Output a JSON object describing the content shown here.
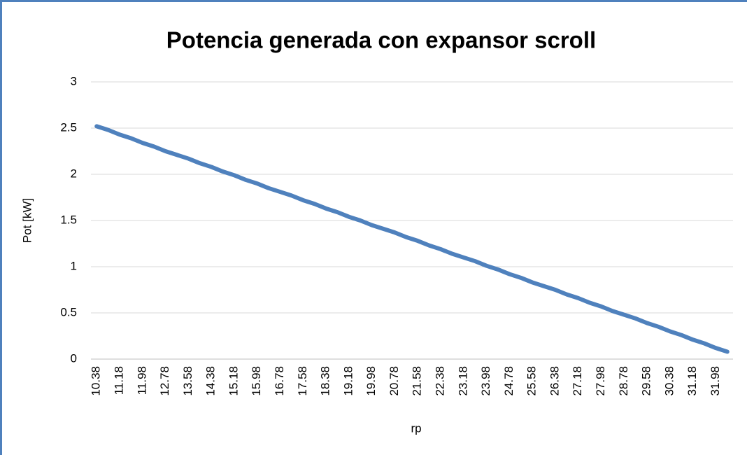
{
  "chart_data": {
    "type": "line",
    "title": "Potencia generada con expansor scroll",
    "x_label": "rp",
    "y_label": "Pot [kW]",
    "categories": [
      "10.38",
      null,
      "11.18",
      null,
      "11.98",
      null,
      "12.78",
      null,
      "13.58",
      null,
      "14.38",
      null,
      "15.18",
      null,
      "15.98",
      null,
      "16.78",
      null,
      "17.58",
      null,
      "18.38",
      null,
      "19.18",
      null,
      "19.98",
      null,
      "20.78",
      null,
      "21.58",
      null,
      "22.38",
      null,
      "23.18",
      null,
      "23.98",
      null,
      "24.78",
      null,
      "25.58",
      null,
      "26.38",
      null,
      "27.18",
      null,
      "27.98",
      null,
      "28.78",
      null,
      "29.58",
      null,
      "30.38",
      null,
      "31.18",
      null,
      "31.98",
      null
    ],
    "values": [
      2.52,
      2.48,
      2.43,
      2.39,
      2.34,
      2.3,
      2.25,
      2.21,
      2.17,
      2.12,
      2.08,
      2.03,
      1.99,
      1.94,
      1.9,
      1.85,
      1.81,
      1.77,
      1.72,
      1.68,
      1.63,
      1.59,
      1.54,
      1.5,
      1.45,
      1.41,
      1.37,
      1.32,
      1.28,
      1.23,
      1.19,
      1.14,
      1.1,
      1.06,
      1.01,
      0.97,
      0.92,
      0.88,
      0.83,
      0.79,
      0.75,
      0.7,
      0.66,
      0.61,
      0.57,
      0.52,
      0.48,
      0.44,
      0.39,
      0.35,
      0.3,
      0.26,
      0.21,
      0.17,
      0.12,
      0.08
    ],
    "color": "#4f81bd",
    "ylim": [
      0,
      3
    ],
    "yticks": [
      0,
      0.5,
      1,
      1.5,
      2,
      2.5,
      3
    ],
    "grid": true
  }
}
